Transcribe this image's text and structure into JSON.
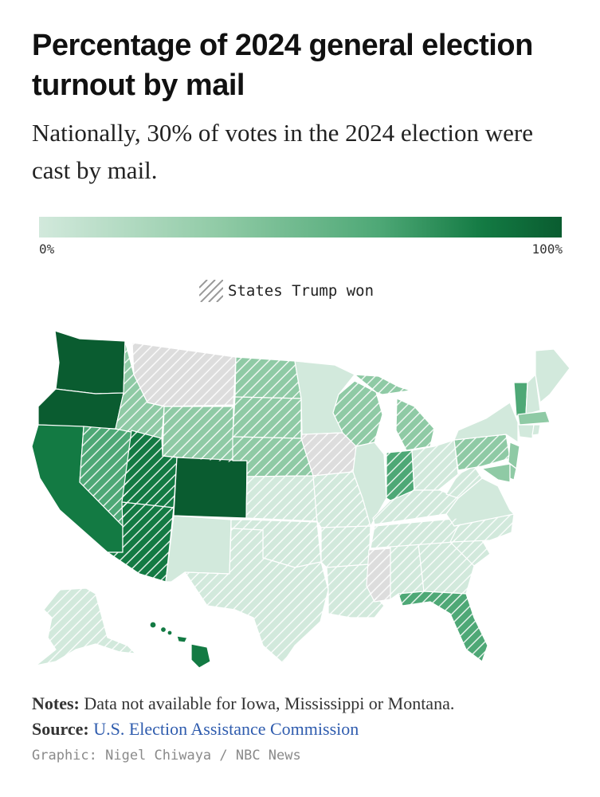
{
  "title": "Percentage of 2024 general election turnout by mail",
  "subtitle": "Nationally, 30% of votes in the 2024 election were cast by mail.",
  "color_scale": {
    "min_label": "0%",
    "max_label": "100%",
    "colors": [
      "#d2e9dc",
      "#8fcaa5",
      "#4ea876",
      "#137a43",
      "#0a5c30"
    ],
    "no_data_color": "#dddddd"
  },
  "legend": {
    "hatched_label": "States Trump won"
  },
  "notes": {
    "label": "Notes:",
    "text": "Data not available for Iowa, Mississippi or Montana."
  },
  "source": {
    "label": "Source:",
    "link_text": "U.S. Election Assistance Commission"
  },
  "credit": "Graphic: Nigel Chiwaya / NBC News"
}
